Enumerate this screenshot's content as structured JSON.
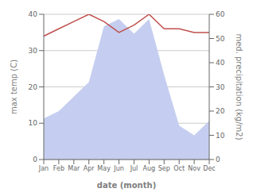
{
  "chart_data": {
    "type": "line",
    "xlabel": "date (month)",
    "ylabel": "max temp (C)",
    "y2label": "med. precipitation (kg/m2)",
    "categories": [
      "Jan",
      "Feb",
      "Mar",
      "Apr",
      "May",
      "Jun",
      "Jul",
      "Aug",
      "Sep",
      "Oct",
      "Nov",
      "Dec"
    ],
    "series": [
      {
        "type": "area",
        "axis": "y2",
        "color": "#c5cef0",
        "values": [
          17,
          20,
          26,
          32,
          55,
          58,
          52,
          58,
          35,
          14,
          10,
          16
        ]
      },
      {
        "type": "line",
        "color": "#c0504d",
        "values": [
          34,
          36,
          38,
          40,
          38,
          35,
          37,
          40,
          36,
          36,
          35,
          35
        ]
      }
    ],
    "ylim": [
      0,
      40
    ],
    "yticks": [
      0,
      10,
      20,
      30,
      40
    ],
    "y2lim": [
      0,
      60
    ],
    "y2ticks": [
      0,
      10,
      20,
      30,
      40,
      50,
      60
    ],
    "grid": true
  }
}
